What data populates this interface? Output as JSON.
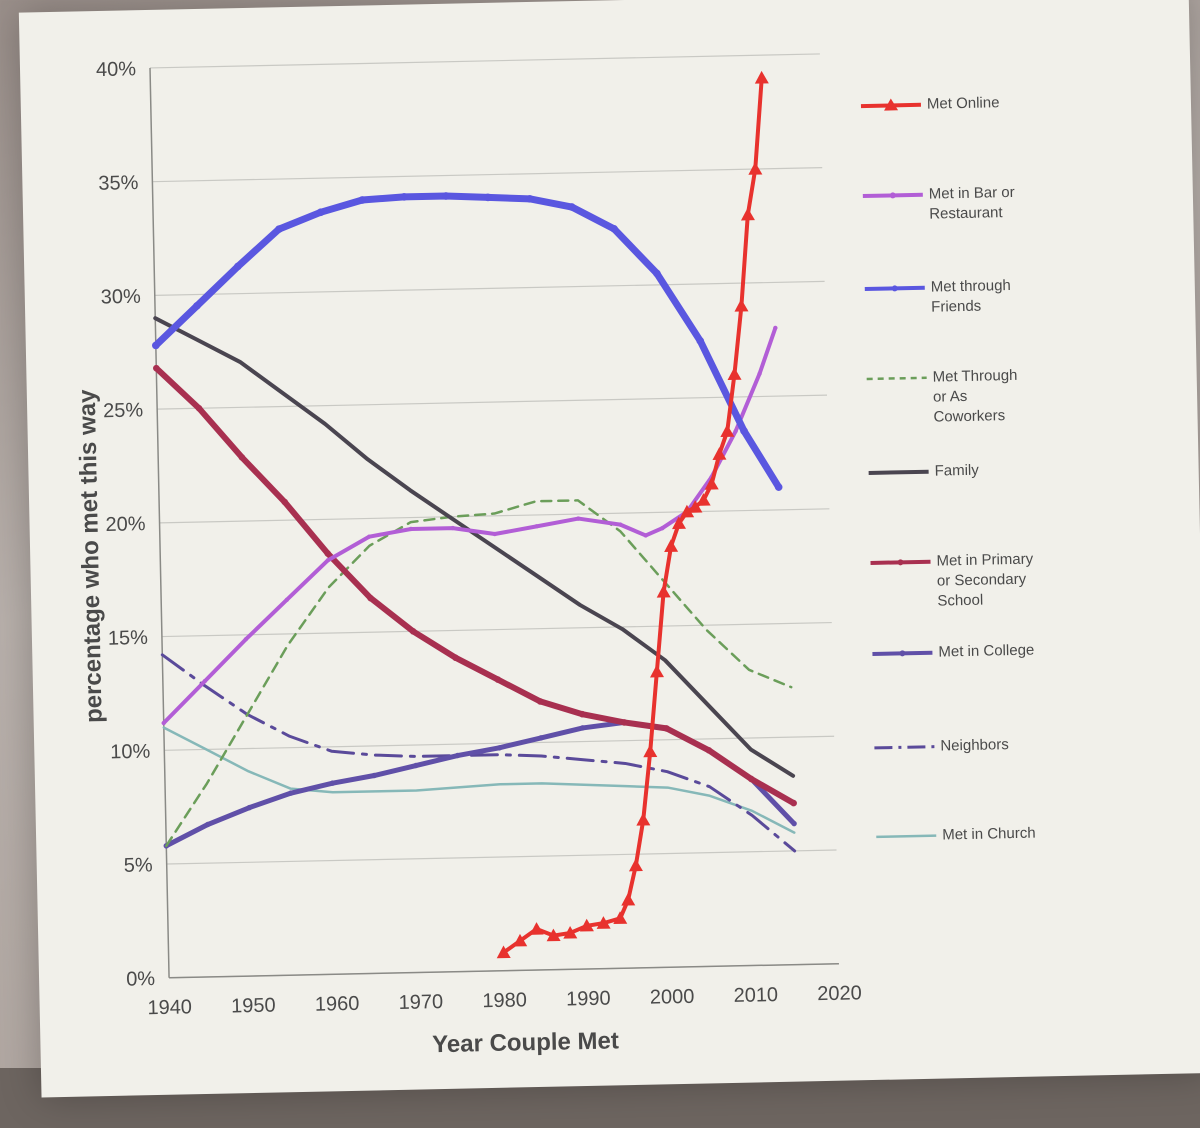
{
  "chart_data": {
    "type": "line",
    "title": "",
    "xlabel": "Year Couple Met",
    "ylabel": "percentage who met this way",
    "xlim": [
      1940,
      2020
    ],
    "ylim": [
      0,
      40
    ],
    "x_ticks": [
      "1940",
      "1950",
      "1960",
      "1970",
      "1980",
      "1990",
      "2000",
      "2010",
      "2020"
    ],
    "y_ticks": [
      "0%",
      "5%",
      "10%",
      "15%",
      "20%",
      "25%",
      "30%",
      "35%",
      "40%"
    ],
    "grid": "horizontal",
    "legend_position": "right",
    "series": [
      {
        "name": "Met Online",
        "color": "#e8322e",
        "style": "solid",
        "marker": "triangle",
        "width": 4,
        "points": [
          [
            1980,
            0.8
          ],
          [
            1982,
            1.3
          ],
          [
            1984,
            1.8
          ],
          [
            1986,
            1.5
          ],
          [
            1988,
            1.6
          ],
          [
            1990,
            1.9
          ],
          [
            1992,
            2.0
          ],
          [
            1994,
            2.2
          ],
          [
            1995,
            3.0
          ],
          [
            1996,
            4.5
          ],
          [
            1997,
            6.5
          ],
          [
            1998,
            9.5
          ],
          [
            1999,
            13
          ],
          [
            2000,
            16.5
          ],
          [
            2001,
            18.5
          ],
          [
            2002,
            19.5
          ],
          [
            2003,
            20
          ],
          [
            2004,
            20.2
          ],
          [
            2005,
            20.5
          ],
          [
            2006,
            21.2
          ],
          [
            2007,
            22.5
          ],
          [
            2008,
            23.5
          ],
          [
            2009,
            26
          ],
          [
            2010,
            29
          ],
          [
            2011,
            33
          ],
          [
            2012,
            35
          ],
          [
            2013,
            39
          ]
        ]
      },
      {
        "name": "Met in Bar or Restaurant",
        "color": "#b25ed6",
        "style": "solid",
        "marker": "dot",
        "width": 4,
        "points": [
          [
            1940,
            11.2
          ],
          [
            1945,
            13
          ],
          [
            1950,
            14.8
          ],
          [
            1955,
            16.5
          ],
          [
            1960,
            18.2
          ],
          [
            1965,
            19.2
          ],
          [
            1970,
            19.5
          ],
          [
            1975,
            19.5
          ],
          [
            1980,
            19.2
          ],
          [
            1985,
            19.5
          ],
          [
            1990,
            19.8
          ],
          [
            1995,
            19.5
          ],
          [
            1998,
            19
          ],
          [
            2000,
            19.3
          ],
          [
            2003,
            20
          ],
          [
            2006,
            21.5
          ],
          [
            2009,
            23.5
          ],
          [
            2012,
            26
          ],
          [
            2014,
            28
          ]
        ]
      },
      {
        "name": "Met through Friends",
        "color": "#5a57e0",
        "style": "solid",
        "marker": "dot",
        "width": 7,
        "points": [
          [
            1940,
            27.8
          ],
          [
            1945,
            29.5
          ],
          [
            1950,
            31.2
          ],
          [
            1955,
            32.8
          ],
          [
            1960,
            33.5
          ],
          [
            1965,
            34
          ],
          [
            1970,
            34.1
          ],
          [
            1975,
            34.1
          ],
          [
            1980,
            34
          ],
          [
            1985,
            33.9
          ],
          [
            1990,
            33.5
          ],
          [
            1995,
            32.5
          ],
          [
            2000,
            30.5
          ],
          [
            2005,
            27.5
          ],
          [
            2010,
            23.5
          ],
          [
            2014,
            21
          ]
        ]
      },
      {
        "name": "Met Through or As Coworkers",
        "color": "#6b9e5a",
        "style": "dashed",
        "marker": "none",
        "width": 2.5,
        "points": [
          [
            1940,
            5.8
          ],
          [
            1945,
            8.5
          ],
          [
            1950,
            11.5
          ],
          [
            1955,
            14.5
          ],
          [
            1960,
            17
          ],
          [
            1965,
            18.8
          ],
          [
            1970,
            19.8
          ],
          [
            1975,
            20
          ],
          [
            1980,
            20.1
          ],
          [
            1985,
            20.6
          ],
          [
            1990,
            20.6
          ],
          [
            1995,
            19.2
          ],
          [
            2000,
            17
          ],
          [
            2005,
            14.8
          ],
          [
            2010,
            13
          ],
          [
            2015,
            12.2
          ]
        ]
      },
      {
        "name": "Family",
        "color": "#4a4550",
        "style": "solid",
        "marker": "none",
        "width": 4,
        "points": [
          [
            1940,
            29
          ],
          [
            1945,
            28
          ],
          [
            1950,
            27
          ],
          [
            1955,
            25.6
          ],
          [
            1960,
            24.2
          ],
          [
            1965,
            22.6
          ],
          [
            1970,
            21.2
          ],
          [
            1975,
            19.9
          ],
          [
            1980,
            18.6
          ],
          [
            1985,
            17.3
          ],
          [
            1990,
            16
          ],
          [
            1995,
            14.9
          ],
          [
            2000,
            13.5
          ],
          [
            2005,
            11.5
          ],
          [
            2010,
            9.5
          ],
          [
            2015,
            8.3
          ]
        ]
      },
      {
        "name": "Met in Primary or Secondary School",
        "color": "#a83050",
        "style": "solid",
        "marker": "dot",
        "width": 6,
        "points": [
          [
            1940,
            26.8
          ],
          [
            1945,
            25
          ],
          [
            1950,
            22.8
          ],
          [
            1955,
            20.8
          ],
          [
            1960,
            18.5
          ],
          [
            1965,
            16.5
          ],
          [
            1970,
            15
          ],
          [
            1975,
            13.8
          ],
          [
            1980,
            12.8
          ],
          [
            1985,
            11.8
          ],
          [
            1990,
            11.2
          ],
          [
            1995,
            10.8
          ],
          [
            2000,
            10.5
          ],
          [
            2005,
            9.5
          ],
          [
            2010,
            8.2
          ],
          [
            2015,
            7.1
          ]
        ]
      },
      {
        "name": "Met in College",
        "color": "#6050a8",
        "style": "solid",
        "marker": "dot",
        "width": 5,
        "points": [
          [
            1940,
            5.8
          ],
          [
            1945,
            6.7
          ],
          [
            1950,
            7.4
          ],
          [
            1955,
            8
          ],
          [
            1960,
            8.4
          ],
          [
            1965,
            8.7
          ],
          [
            1970,
            9.1
          ],
          [
            1975,
            9.5
          ],
          [
            1980,
            9.8
          ],
          [
            1985,
            10.2
          ],
          [
            1990,
            10.6
          ],
          [
            1995,
            10.8
          ],
          [
            2000,
            10.5
          ],
          [
            2005,
            9.5
          ],
          [
            2010,
            8.2
          ],
          [
            2015,
            6.2
          ]
        ]
      },
      {
        "name": "Neighbors",
        "color": "#5a4a9a",
        "style": "dashdot",
        "marker": "none",
        "width": 3,
        "points": [
          [
            1940,
            14.2
          ],
          [
            1945,
            12.8
          ],
          [
            1950,
            11.5
          ],
          [
            1955,
            10.5
          ],
          [
            1960,
            9.8
          ],
          [
            1965,
            9.6
          ],
          [
            1970,
            9.5
          ],
          [
            1975,
            9.5
          ],
          [
            1980,
            9.5
          ],
          [
            1985,
            9.4
          ],
          [
            1990,
            9.2
          ],
          [
            1995,
            9
          ],
          [
            2000,
            8.6
          ],
          [
            2005,
            7.9
          ],
          [
            2010,
            6.6
          ],
          [
            2015,
            5
          ]
        ]
      },
      {
        "name": "Met in Church",
        "color": "#86b8b8",
        "style": "solid",
        "marker": "none",
        "width": 2.5,
        "points": [
          [
            1940,
            11
          ],
          [
            1945,
            10
          ],
          [
            1950,
            9
          ],
          [
            1955,
            8.2
          ],
          [
            1960,
            8
          ],
          [
            1965,
            8
          ],
          [
            1970,
            8
          ],
          [
            1975,
            8.1
          ],
          [
            1980,
            8.2
          ],
          [
            1985,
            8.2
          ],
          [
            1990,
            8.1
          ],
          [
            1995,
            8
          ],
          [
            2000,
            7.9
          ],
          [
            2005,
            7.5
          ],
          [
            2010,
            6.8
          ],
          [
            2015,
            5.8
          ]
        ]
      }
    ],
    "legend": [
      {
        "series": "Met Online",
        "lines": [
          "Met Online"
        ]
      },
      {
        "series": "Met in Bar or Restaurant",
        "lines": [
          "Met in Bar or",
          "Restaurant"
        ]
      },
      {
        "series": "Met through Friends",
        "lines": [
          "Met through",
          "Friends"
        ]
      },
      {
        "series": "Met Through or As Coworkers",
        "lines": [
          "Met Through",
          "or As",
          "Coworkers"
        ]
      },
      {
        "series": "Family",
        "lines": [
          "Family"
        ]
      },
      {
        "series": "Met in Primary or Secondary School",
        "lines": [
          "Met in Primary",
          "or Secondary",
          "School"
        ]
      },
      {
        "series": "Met in College",
        "lines": [
          "Met in College"
        ]
      },
      {
        "series": "Neighbors",
        "lines": [
          "Neighbors"
        ]
      },
      {
        "series": "Met in Church",
        "lines": [
          "Met in Church"
        ]
      }
    ]
  }
}
